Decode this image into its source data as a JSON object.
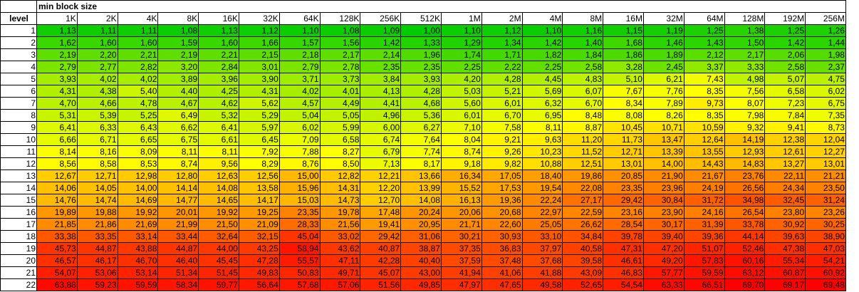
{
  "spreadsheet": {
    "title": "min block size",
    "row_header_label": "level",
    "columns": [
      "1K",
      "2K",
      "4K",
      "8K",
      "16K",
      "32K",
      "64K",
      "128K",
      "256K",
      "512K",
      "1M",
      "2M",
      "4M",
      "8M",
      "16M",
      "32M",
      "64M",
      "128M",
      "192M",
      "256M"
    ],
    "rows": [
      {
        "level": "1",
        "values": [
          "1,13",
          "1,11",
          "1,11",
          "1,08",
          "1,13",
          "1,12",
          "1,10",
          "1,08",
          "1,09",
          "1,00",
          "1,10",
          "1,12",
          "1,10",
          "1,16",
          "1,15",
          "1,19",
          "1,25",
          "1,38",
          "1,25",
          "1,26"
        ]
      },
      {
        "level": "2",
        "values": [
          "1,62",
          "1,60",
          "1,60",
          "1,59",
          "1,60",
          "1,66",
          "1,57",
          "1,56",
          "1,42",
          "1,33",
          "1,29",
          "1,34",
          "1,42",
          "1,40",
          "1,68",
          "1,46",
          "1,43",
          "1,50",
          "1,42",
          "1,44"
        ]
      },
      {
        "level": "3",
        "values": [
          "2,19",
          "2,20",
          "2,21",
          "2,19",
          "2,21",
          "2,15",
          "2,18",
          "2,17",
          "2,14",
          "1,96",
          "1,74",
          "1,71",
          "1,82",
          "1,84",
          "1,86",
          "1,89",
          "2,12",
          "2,17",
          "2,06",
          "1,98"
        ]
      },
      {
        "level": "4",
        "values": [
          "2,79",
          "2,77",
          "2,82",
          "3,20",
          "2,84",
          "3,01",
          "2,79",
          "2,78",
          "2,35",
          "2,35",
          "2,25",
          "2,22",
          "2,25",
          "2,58",
          "3,28",
          "2,45",
          "3,37",
          "3,33",
          "2,58",
          "2,37"
        ]
      },
      {
        "level": "5",
        "values": [
          "3,93",
          "4,02",
          "4,02",
          "3,89",
          "3,96",
          "3,90",
          "3,71",
          "3,73",
          "3,84",
          "3,93",
          "4,20",
          "4,28",
          "4,45",
          "4,83",
          "5,10",
          "6,21",
          "7,43",
          "4,98",
          "5,07",
          "4,75"
        ]
      },
      {
        "level": "6",
        "values": [
          "4,31",
          "4,38",
          "5,40",
          "4,40",
          "4,25",
          "4,31",
          "4,02",
          "4,01",
          "4,13",
          "4,28",
          "5,03",
          "5,21",
          "5,69",
          "6,07",
          "7,67",
          "7,76",
          "8,35",
          "7,56",
          "6,58",
          "6,02"
        ]
      },
      {
        "level": "7",
        "values": [
          "4,70",
          "4,66",
          "4,78",
          "4,67",
          "4,62",
          "5,62",
          "4,57",
          "4,49",
          "4,41",
          "4,68",
          "5,60",
          "6,01",
          "6,32",
          "6,70",
          "8,34",
          "7,89",
          "9,73",
          "8,07",
          "7,23",
          "6,75"
        ]
      },
      {
        "level": "8",
        "values": [
          "5,31",
          "5,39",
          "5,25",
          "6,49",
          "5,32",
          "5,29",
          "5,04",
          "5,05",
          "4,96",
          "5,36",
          "6,01",
          "6,70",
          "6,95",
          "8,48",
          "8,08",
          "8,26",
          "8,35",
          "7,98",
          "7,84",
          "7,35"
        ]
      },
      {
        "level": "9",
        "values": [
          "6,41",
          "6,33",
          "6,43",
          "6,62",
          "6,41",
          "5,97",
          "6,02",
          "5,99",
          "6,00",
          "6,27",
          "7,10",
          "7,58",
          "8,11",
          "8,87",
          "10,45",
          "10,71",
          "10,59",
          "9,32",
          "9,41",
          "8,73"
        ]
      },
      {
        "level": "10",
        "values": [
          "6,66",
          "6,71",
          "6,65",
          "6,75",
          "6,61",
          "6,45",
          "7,09",
          "6,58",
          "6,74",
          "7,64",
          "8,04",
          "9,21",
          "9,63",
          "11,20",
          "11,73",
          "13,47",
          "12,64",
          "14,19",
          "12,38",
          "12,04"
        ]
      },
      {
        "level": "11",
        "values": [
          "8,14",
          "8,16",
          "8,09",
          "8,11",
          "8,11",
          "7,92",
          "7,88",
          "8,27",
          "6,79",
          "7,74",
          "8,74",
          "9,26",
          "10,23",
          "11,52",
          "12,71",
          "13,39",
          "13,55",
          "12,93",
          "12,61",
          "12,27"
        ]
      },
      {
        "level": "12",
        "values": [
          "8,56",
          "8,58",
          "8,53",
          "8,74",
          "9,56",
          "8,29",
          "8,76",
          "8,50",
          "7,13",
          "8,17",
          "9,18",
          "9,82",
          "10,88",
          "12,51",
          "13,01",
          "14,00",
          "14,43",
          "14,83",
          "13,27",
          "13,01"
        ]
      },
      {
        "level": "13",
        "values": [
          "12,67",
          "12,71",
          "12,98",
          "12,80",
          "12,63",
          "12,56",
          "15,00",
          "12,82",
          "12,21",
          "13,66",
          "16,34",
          "17,05",
          "18,40",
          "19,86",
          "20,85",
          "21,90",
          "21,67",
          "23,76",
          "22,11",
          "21,21"
        ]
      },
      {
        "level": "14",
        "values": [
          "14,06",
          "14,05",
          "14,00",
          "14,14",
          "14,08",
          "13,58",
          "15,96",
          "14,31",
          "12,20",
          "13,99",
          "15,52",
          "17,53",
          "19,54",
          "22,08",
          "23,35",
          "23,96",
          "24,19",
          "26,56",
          "24,34",
          "23,50"
        ]
      },
      {
        "level": "15",
        "values": [
          "14,76",
          "14,74",
          "14,69",
          "14,77",
          "14,65",
          "14,17",
          "15,03",
          "14,73",
          "12,70",
          "14,08",
          "16,13",
          "19,36",
          "22,24",
          "27,17",
          "29,42",
          "30,84",
          "31,72",
          "34,98",
          "32,45",
          "31,24"
        ]
      },
      {
        "level": "16",
        "values": [
          "19,89",
          "19,88",
          "19,92",
          "20,01",
          "19,92",
          "19,25",
          "23,35",
          "19,78",
          "17,48",
          "20,24",
          "20,06",
          "20,68",
          "22,97",
          "22,59",
          "23,16",
          "23,90",
          "24,16",
          "26,54",
          "23,80",
          "23,26"
        ]
      },
      {
        "level": "17",
        "values": [
          "21,85",
          "21,86",
          "21,69",
          "21,99",
          "21,50",
          "21,09",
          "28,33",
          "21,56",
          "19,41",
          "20,95",
          "21,71",
          "22,60",
          "25,05",
          "26,62",
          "28,54",
          "30,17",
          "31,39",
          "33,78",
          "30,92",
          "30,25"
        ]
      },
      {
        "level": "18",
        "values": [
          "33,38",
          "33,35",
          "33,14",
          "33,44",
          "32,64",
          "32,15",
          "45,04",
          "33,02",
          "29,42",
          "31,06",
          "30,21",
          "30,93",
          "33,10",
          "34,84",
          "39,78",
          "39,40",
          "39,36",
          "44,14",
          "39,63",
          "38,90"
        ]
      },
      {
        "level": "19",
        "values": [
          "45,73",
          "44,87",
          "43,88",
          "44,87",
          "44,00",
          "43,25",
          "58,94",
          "43,62",
          "40,87",
          "38,87",
          "37,35",
          "36,83",
          "37,97",
          "40,58",
          "47,31",
          "47,20",
          "51,07",
          "52,46",
          "47,38",
          "47,03"
        ]
      },
      {
        "level": "20",
        "values": [
          "46,57",
          "46,17",
          "46,70",
          "46,40",
          "45,45",
          "47,28",
          "55,57",
          "47,11",
          "42,28",
          "40,40",
          "37,59",
          "37,48",
          "37,68",
          "39,58",
          "46,61",
          "49,20",
          "57,83",
          "60,16",
          "55,34",
          "54,21"
        ]
      },
      {
        "level": "21",
        "values": [
          "54,07",
          "53,06",
          "53,14",
          "51,34",
          "51,45",
          "49,83",
          "50,83",
          "49,71",
          "45,07",
          "43,00",
          "41,94",
          "41,06",
          "41,88",
          "43,09",
          "46,83",
          "57,77",
          "59,59",
          "63,12",
          "60,87",
          "60,92"
        ]
      },
      {
        "level": "22",
        "values": [
          "63,88",
          "59,23",
          "59,59",
          "58,34",
          "59,77",
          "56,64",
          "57,68",
          "57,06",
          "51,56",
          "49,85",
          "47,97",
          "47,65",
          "49,58",
          "52,65",
          "54,54",
          "63,33",
          "66,51",
          "69,70",
          "69,17",
          "69,48"
        ]
      }
    ],
    "scale": {
      "min": 1.0,
      "max": 69.7,
      "colors": [
        "#00cc00",
        "#ffff00",
        "#ff0000"
      ]
    }
  }
}
